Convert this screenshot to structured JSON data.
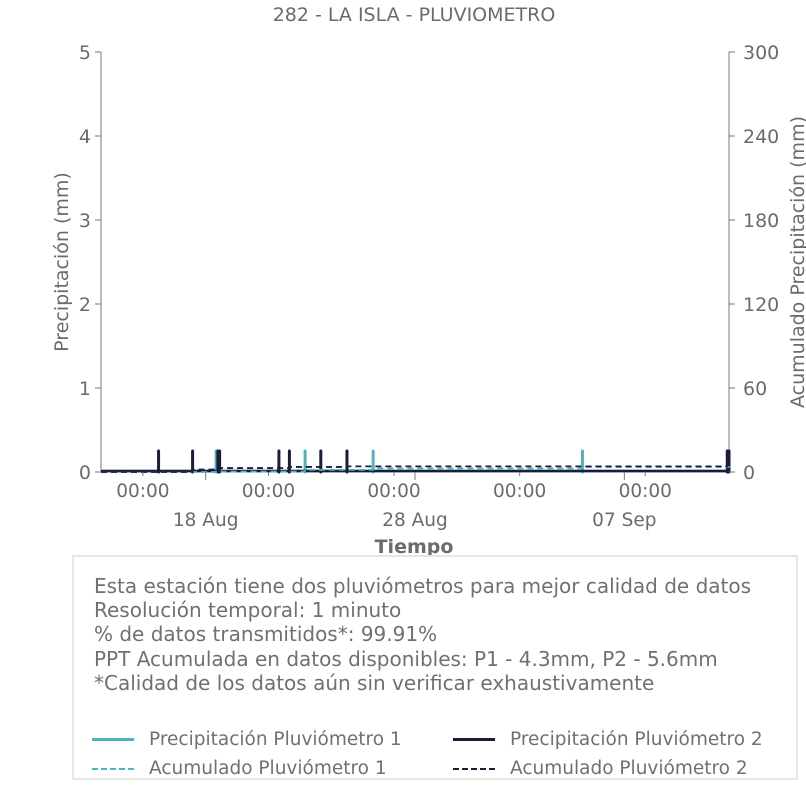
{
  "chart_data": {
    "type": "line",
    "title": "282 - LA ISLA - PLUVIOMETRO",
    "xlabel": "Tiempo",
    "ylabel": "Precipitación (mm)",
    "y2label": "Acumulado Precipitación (mm)",
    "xlim": [
      "2024-08-13",
      "2024-09-12"
    ],
    "ylim": [
      0,
      5
    ],
    "y2lim": [
      0,
      300
    ],
    "yticks": [
      "0",
      "1",
      "2",
      "3",
      "4",
      "5"
    ],
    "y2ticks": [
      "0",
      "60",
      "120",
      "180",
      "240",
      "300"
    ],
    "xticks_minor": [
      {
        "date": "2024-08-15",
        "label": "00:00"
      },
      {
        "date": "2024-08-21",
        "label": "00:00"
      },
      {
        "date": "2024-08-27",
        "label": "00:00"
      },
      {
        "date": "2024-09-02",
        "label": "00:00"
      },
      {
        "date": "2024-09-08",
        "label": "00:00"
      }
    ],
    "xticks_major": [
      {
        "date": "2024-08-18",
        "label": "18 Aug"
      },
      {
        "date": "2024-08-28",
        "label": "28 Aug"
      },
      {
        "date": "2024-09-07",
        "label": "07 Sep"
      }
    ],
    "grid": false,
    "legend_position": "bottom",
    "series": [
      {
        "name": "Precipitación Pluviómetro 1",
        "color": "#4db3bf",
        "style": "solid",
        "axis": "left",
        "points": [
          [
            "2024-08-18 12:00",
            0.25
          ],
          [
            "2024-08-22 18:00",
            0.25
          ],
          [
            "2024-08-26 00:00",
            0.25
          ],
          [
            "2024-09-05 00:00",
            0.25
          ],
          [
            "2024-09-12 00:00",
            0.25
          ]
        ]
      },
      {
        "name": "Precipitación Pluviómetro 2",
        "color": "#1c1c3a",
        "style": "solid",
        "axis": "left",
        "points": [
          [
            "2024-08-15 18:00",
            0.25
          ],
          [
            "2024-08-17 09:00",
            0.25
          ],
          [
            "2024-08-18 14:00",
            0.25
          ],
          [
            "2024-08-18 16:00",
            0.25
          ],
          [
            "2024-08-21 12:00",
            0.25
          ],
          [
            "2024-08-22 00:00",
            0.25
          ],
          [
            "2024-08-23 12:00",
            0.25
          ],
          [
            "2024-08-24 18:00",
            0.25
          ],
          [
            "2024-09-11 22:00",
            0.25
          ],
          [
            "2024-09-12 00:00",
            0.25
          ]
        ]
      },
      {
        "name": "Acumulado Pluviómetro 1",
        "color": "#4db3bf",
        "style": "dashed",
        "axis": "right",
        "points": [
          [
            "2024-08-13",
            0
          ],
          [
            "2024-08-18 12:00",
            0.3
          ],
          [
            "2024-08-22 18:00",
            1.5
          ],
          [
            "2024-08-26 00:00",
            2.6
          ],
          [
            "2024-09-05 00:00",
            3.6
          ],
          [
            "2024-09-12",
            4.3
          ]
        ]
      },
      {
        "name": "Acumulado Pluviómetro 2",
        "color": "#1c1c3a",
        "style": "dashed",
        "axis": "right",
        "points": [
          [
            "2024-08-13",
            0
          ],
          [
            "2024-08-17 09:00",
            1.8
          ],
          [
            "2024-08-18 16:00",
            2.8
          ],
          [
            "2024-08-22 00:00",
            3.6
          ],
          [
            "2024-08-24 18:00",
            4.0
          ],
          [
            "2024-09-11 22:00",
            5.0
          ],
          [
            "2024-09-12",
            5.6
          ]
        ]
      }
    ]
  },
  "info": {
    "line1": "Esta estación tiene dos pluviómetros para mejor calidad de datos",
    "line2": "Resolución temporal: 1 minuto",
    "line3": "% de datos transmitidos*: 99.91%",
    "line4": "PPT Acumulada en datos disponibles: P1 - 4.3mm, P2 - 5.6mm",
    "line5": "*Calidad de los datos aún sin verificar exhaustivamente"
  },
  "legend": [
    {
      "label": "Precipitación Pluviómetro 1",
      "color": "#4db3bf",
      "style": "solid"
    },
    {
      "label": "Precipitación Pluviómetro 2",
      "color": "#1c1c3a",
      "style": "solid"
    },
    {
      "label": "Acumulado Pluviómetro 1",
      "color": "#4db3bf",
      "style": "dashed"
    },
    {
      "label": "Acumulado Pluviómetro 2",
      "color": "#1c1c3a",
      "style": "dashed"
    }
  ]
}
